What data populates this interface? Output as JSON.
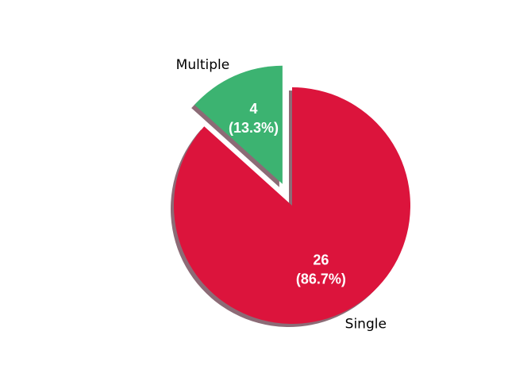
{
  "chart_data": {
    "type": "pie",
    "categories": [
      "Single",
      "Multiple"
    ],
    "values": [
      26,
      4
    ],
    "percent_labels": [
      "(86.7%)",
      "(13.3%)"
    ],
    "value_labels": [
      "26",
      "4"
    ],
    "colors": [
      "#dc143c",
      "#3cb371"
    ],
    "shadow_color": "#8c6b76",
    "exploded": [
      false,
      true
    ],
    "shadow": true,
    "title": "",
    "legend": "none"
  }
}
